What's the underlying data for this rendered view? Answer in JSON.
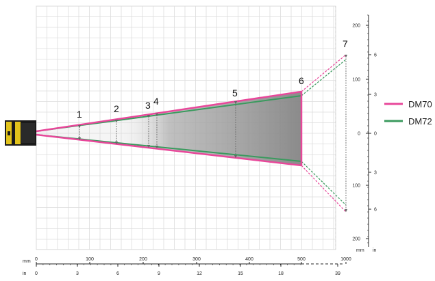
{
  "diagram": {
    "position_labels": [
      "1",
      "2",
      "3",
      "4",
      "5",
      "6",
      "7"
    ],
    "legend": [
      {
        "label": "DM70",
        "color": "#e8479a"
      },
      {
        "label": "DM72",
        "color": "#3a9a5e"
      }
    ],
    "bottom_axis_mm": {
      "unit": "mm",
      "ticks": [
        "0",
        "100",
        "200",
        "300",
        "400",
        "500",
        "1000"
      ]
    },
    "bottom_axis_in": {
      "unit": "in",
      "ticks": [
        "0",
        "3",
        "6",
        "9",
        "12",
        "15",
        "18",
        "39"
      ]
    },
    "right_axis": {
      "unit_mm": "mm",
      "unit_in": "in",
      "mm_ticks": [
        "200",
        "100",
        "0",
        "100",
        "200"
      ],
      "in_ticks": [
        "6",
        "3",
        "0",
        "3",
        "6"
      ]
    }
  }
}
